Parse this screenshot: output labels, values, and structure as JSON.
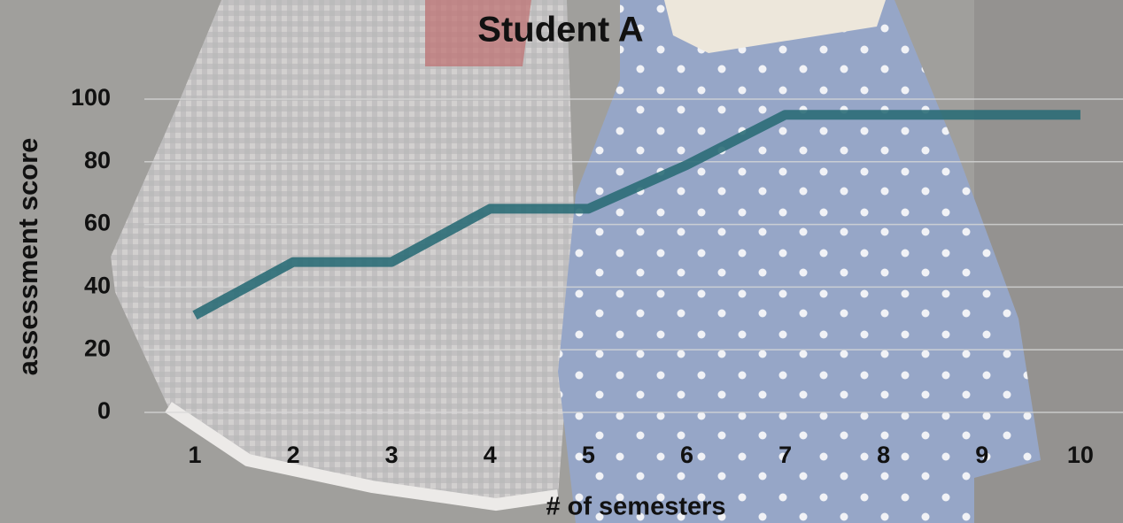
{
  "chart_data": {
    "type": "line",
    "title": "Student A",
    "x_label": "# of semesters",
    "y_label": "assessment score",
    "categories": [
      "1",
      "2",
      "3",
      "4",
      "5",
      "6",
      "7",
      "8",
      "9",
      "10"
    ],
    "values": [
      31,
      48,
      48,
      65,
      65,
      79,
      95,
      95,
      95,
      95
    ],
    "color": "#2b6d77",
    "ylim": [
      0,
      100
    ],
    "yticks": [
      0,
      20,
      40,
      60,
      80,
      100
    ],
    "grid": true
  }
}
